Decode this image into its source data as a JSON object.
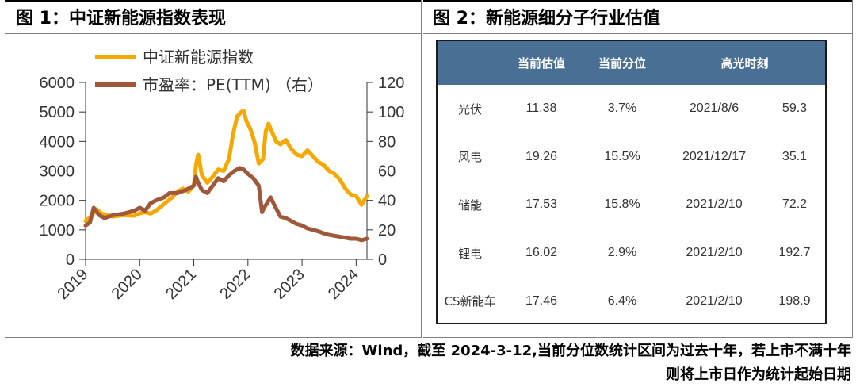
{
  "left_panel": {
    "title": "图 1：中证新能源指数表现"
  },
  "right_panel": {
    "title": "图 2：新能源细分子行业估值",
    "table": {
      "headers": [
        "",
        "当前估值",
        "当前分位",
        "高光时刻",
        ""
      ],
      "rows": [
        [
          "光伏",
          "11.38",
          "3.7%",
          "2021/8/6",
          "59.3"
        ],
        [
          "风电",
          "19.26",
          "15.5%",
          "2021/12/17",
          "35.1"
        ],
        [
          "储能",
          "17.53",
          "15.8%",
          "2021/2/10",
          "72.2"
        ],
        [
          "锂电",
          "16.02",
          "2.9%",
          "2021/2/10",
          "192.7"
        ],
        [
          "CS新能车",
          "17.46",
          "6.4%",
          "2021/2/10",
          "198.9"
        ]
      ]
    }
  },
  "footnote": {
    "line1": "数据来源：Wind，截至 2024-3-12,当前分位数统计区间为过去十年，若上市不满十年",
    "line2": "则将上市日作为统计起始日期"
  },
  "colors": {
    "index": "#f5a800",
    "pe": "#a0583a",
    "header_bg": "#4a6f94"
  },
  "chart_data": {
    "type": "line",
    "title": "中证新能源指数表现",
    "x_ticks": [
      "2019",
      "2020",
      "2021",
      "2022",
      "2023",
      "2024"
    ],
    "y_left": {
      "range": [
        0,
        6000
      ],
      "ticks": [
        "0",
        "1000",
        "2000",
        "3000",
        "4000",
        "5000",
        "6000"
      ]
    },
    "y_right": {
      "range": [
        0,
        120
      ],
      "ticks": [
        "0",
        "20",
        "40",
        "60",
        "80",
        "100",
        "120"
      ]
    },
    "series": [
      {
        "name": "中证新能源指数",
        "axis": "left",
        "x": [
          2019.0,
          2019.1,
          2019.2,
          2019.3,
          2019.5,
          2019.7,
          2019.9,
          2020.0,
          2020.1,
          2020.2,
          2020.3,
          2020.4,
          2020.5,
          2020.6,
          2020.7,
          2020.8,
          2020.9,
          2021.0,
          2021.04,
          2021.08,
          2021.15,
          2021.25,
          2021.35,
          2021.45,
          2021.55,
          2021.65,
          2021.72,
          2021.8,
          2021.88,
          2021.92,
          2021.97,
          2022.05,
          2022.12,
          2022.2,
          2022.28,
          2022.33,
          2022.38,
          2022.45,
          2022.52,
          2022.6,
          2022.7,
          2022.8,
          2022.9,
          2023.0,
          2023.1,
          2023.2,
          2023.3,
          2023.4,
          2023.5,
          2023.6,
          2023.7,
          2023.8,
          2023.9,
          2024.0,
          2024.05,
          2024.1,
          2024.2
        ],
        "y": [
          1300,
          1450,
          1700,
          1550,
          1450,
          1500,
          1480,
          1560,
          1600,
          1550,
          1650,
          1800,
          1950,
          2100,
          2300,
          2400,
          2300,
          2500,
          3200,
          3550,
          2850,
          2600,
          2800,
          3050,
          3000,
          3400,
          4200,
          4850,
          5000,
          5050,
          4700,
          4400,
          4000,
          3250,
          3400,
          4350,
          4600,
          4300,
          4000,
          3900,
          4050,
          3750,
          3550,
          3500,
          3700,
          3500,
          3300,
          3200,
          3000,
          2900,
          2700,
          2400,
          2200,
          2150,
          2000,
          1850,
          2150
        ]
      },
      {
        "name": "市盈率：PE(TTM) （右）",
        "axis": "right",
        "x": [
          2019.0,
          2019.08,
          2019.15,
          2019.25,
          2019.35,
          2019.5,
          2019.7,
          2019.9,
          2020.0,
          2020.1,
          2020.2,
          2020.3,
          2020.45,
          2020.55,
          2020.7,
          2020.85,
          2021.0,
          2021.04,
          2021.08,
          2021.15,
          2021.25,
          2021.35,
          2021.45,
          2021.55,
          2021.65,
          2021.75,
          2021.85,
          2021.92,
          2022.0,
          2022.1,
          2022.2,
          2022.26,
          2022.3,
          2022.35,
          2022.42,
          2022.5,
          2022.6,
          2022.7,
          2022.8,
          2022.9,
          2023.0,
          2023.1,
          2023.2,
          2023.3,
          2023.45,
          2023.6,
          2023.75,
          2023.9,
          2024.0,
          2024.1,
          2024.2
        ],
        "y": [
          23,
          25,
          35,
          30,
          28,
          30,
          31,
          33,
          35,
          33,
          38,
          40,
          42,
          45,
          45,
          47,
          50,
          56,
          52,
          47,
          45,
          50,
          55,
          53,
          57,
          60,
          62,
          61,
          58,
          55,
          50,
          32,
          35,
          38,
          42,
          36,
          29,
          28,
          26,
          24,
          23,
          21,
          20,
          19,
          17,
          16,
          15,
          14,
          14,
          13,
          14
        ]
      }
    ]
  }
}
